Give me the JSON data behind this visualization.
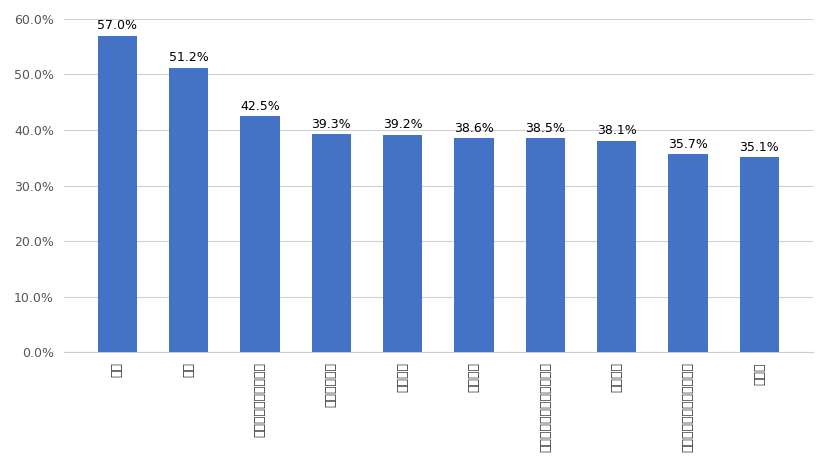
{
  "categories": [
    "大学",
    "銀行",
    "小学校・中学校・高校",
    "旅館・ホテル",
    "通信販売",
    "動物病院",
    "情報通信・インターネット",
    "専門学校",
    "貸金業、クレジットカード",
    "官公庁"
  ],
  "values": [
    57.0,
    51.2,
    42.5,
    39.3,
    39.2,
    38.6,
    38.5,
    38.1,
    35.7,
    35.1
  ],
  "bar_color": "#4472C4",
  "ylim": [
    0,
    60
  ],
  "yticks": [
    0.0,
    10.0,
    20.0,
    30.0,
    40.0,
    50.0,
    60.0
  ],
  "ytick_labels": [
    "0.0%",
    "10.0%",
    "20.0%",
    "30.0%",
    "40.0%",
    "50.0%",
    "60.0%"
  ],
  "background_color": "#ffffff",
  "grid_color": "#d0d0d0",
  "value_fontsize": 9,
  "tick_fontsize": 9
}
